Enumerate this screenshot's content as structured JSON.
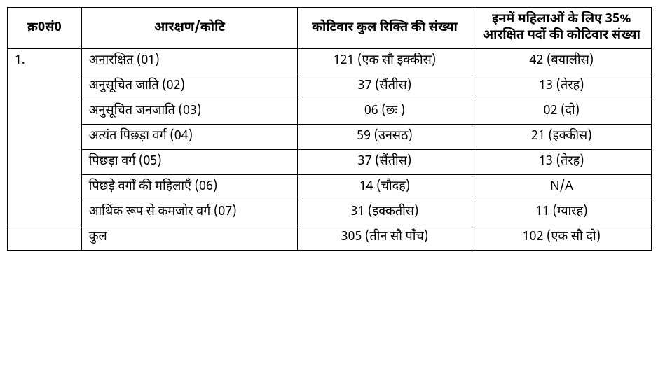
{
  "table": {
    "headers": {
      "serial": "क्र0सं0",
      "category": "आरक्षण/कोटि",
      "vacancy": "कोटिवार कुल रिक्ति की संख्या",
      "women": "इनमें महिलाओं के लिए 35% आरक्षित पदों की कोटिवार संख्या"
    },
    "serial": "1.",
    "rows": [
      {
        "category": "अनारक्षित (01)",
        "vacancy": "121 (एक सौ इक्कीस)",
        "women": "42 (बयालीस)"
      },
      {
        "category": "अनुसूचित जाति (02)",
        "vacancy": "37 (सैंतीस)",
        "women": "13 (तेरह)"
      },
      {
        "category": "अनुसूचित जनजाति (03)",
        "vacancy": "06 (छः )",
        "women": "02 (दो)"
      },
      {
        "category": "अत्यंत पिछड़ा वर्ग (04)",
        "vacancy": "59 (उनसठ)",
        "women": "21 (इक्कीस)"
      },
      {
        "category": "पिछड़ा वर्ग (05)",
        "vacancy": "37 (सैंतीस)",
        "women": "13 (तेरह)"
      },
      {
        "category": "पिछड़े वर्गों की महिलाएँ (06)",
        "vacancy": "14 (चौदह)",
        "women": "N/A"
      },
      {
        "category": "आर्थिक रूप से कमजोर वर्ग (07)",
        "vacancy": "31 (इक्कतीस)",
        "women": "11 (ग्यारह)"
      }
    ],
    "total": {
      "label": "कुल",
      "vacancy": "305 (तीन सौ पाँच)",
      "women": "102 (एक सौ दो)"
    }
  }
}
